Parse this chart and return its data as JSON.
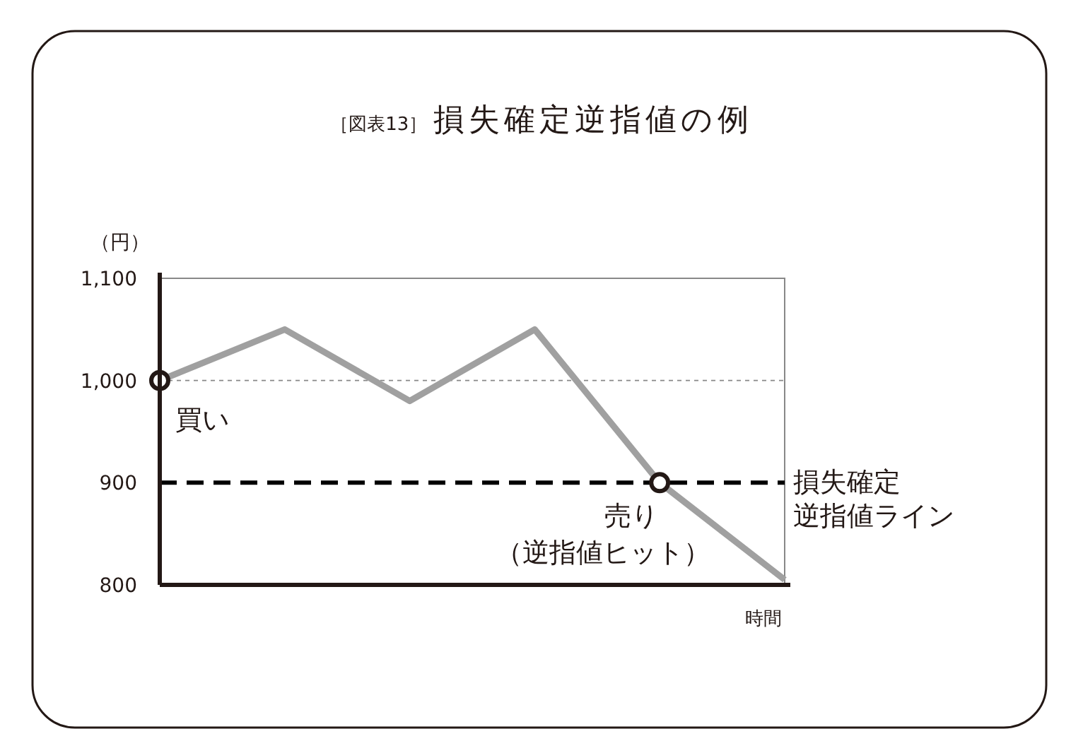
{
  "chart_data": {
    "type": "line",
    "title": "［図表13］ 損失確定逆指値の例",
    "ylabel": "（円）",
    "xlabel": "時間",
    "categories": [
      null,
      null,
      null,
      null,
      null,
      null
    ],
    "series": [
      {
        "color": "#a0a0a0",
        "values": [
          1000,
          1050,
          980,
          1050,
          900,
          805
        ]
      },
      {
        "type": "scatter",
        "color": "#231815",
        "marker": "circle",
        "values": [
          1000,
          null,
          null,
          null,
          900,
          null
        ]
      }
    ],
    "ylim": [
      800,
      1100
    ],
    "yticks": [
      {
        "value": 800,
        "label": "800"
      },
      {
        "value": 900,
        "label": "900"
      },
      {
        "value": 1000,
        "label": "1,000"
      },
      {
        "value": 1100,
        "label": "1,100"
      }
    ],
    "ref_lines": [
      {
        "axis": "y",
        "value": 1000,
        "color": "#888888",
        "line_style": "dotted"
      },
      {
        "axis": "y",
        "value": 900,
        "label": "損失確定",
        "color": "#000000",
        "line_style": "dashed"
      }
    ],
    "annotations": [
      {
        "text": "買い",
        "y": 1000
      },
      {
        "text": "売り",
        "y": 900
      },
      "（逆指値ヒット）",
      "逆指値ライン"
    ]
  }
}
